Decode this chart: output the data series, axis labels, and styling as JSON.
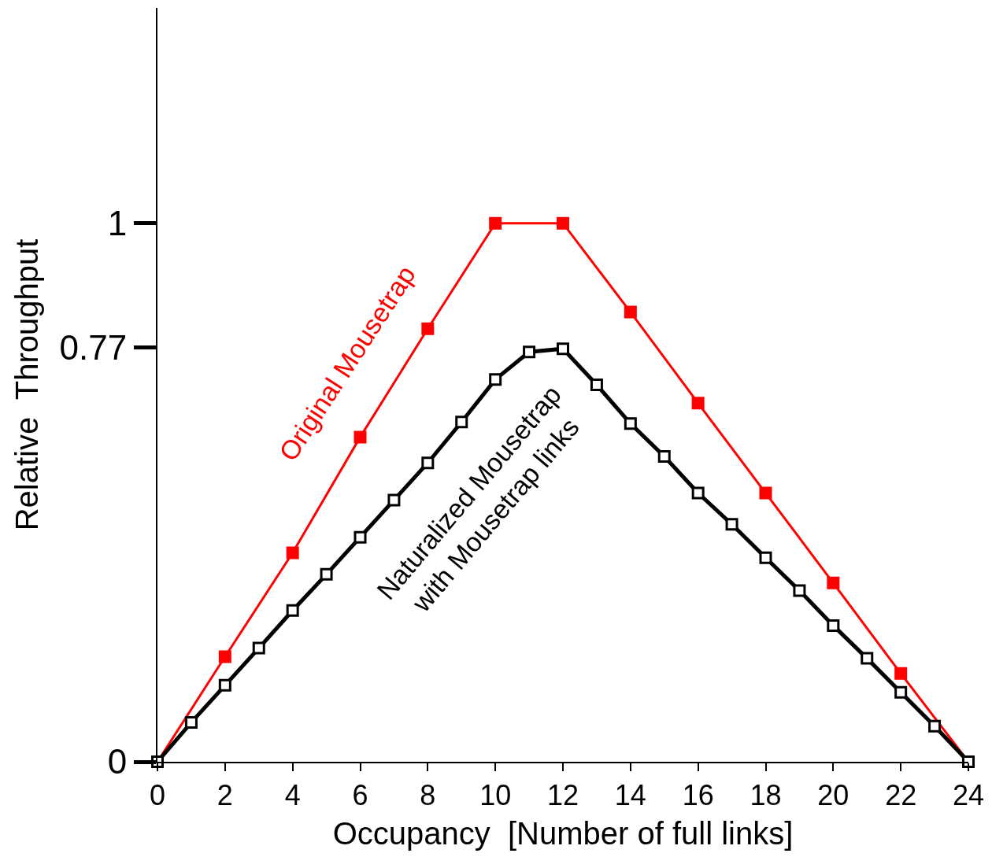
{
  "chart_data": {
    "type": "line",
    "xlabel": "Occupancy  [Number of full links]",
    "ylabel": "Relative  Throughput",
    "xlim": [
      0,
      24
    ],
    "ylim": [
      0,
      1.4
    ],
    "xticks": [
      0,
      2,
      4,
      6,
      8,
      10,
      12,
      14,
      16,
      18,
      20,
      22,
      24
    ],
    "yticks": [
      0,
      0.77,
      1
    ],
    "marker": "square",
    "legend": false,
    "series": [
      {
        "name": "Original Mousetrap",
        "color": "#ff0000",
        "x": [
          0,
          2,
          4,
          6,
          8,
          10,
          12,
          14,
          16,
          18,
          20,
          22,
          24
        ],
        "values": [
          0,
          0.195,
          0.388,
          0.603,
          0.804,
          1,
          1,
          0.835,
          0.666,
          0.499,
          0.332,
          0.164,
          0
        ]
      },
      {
        "name": "Naturalized Mousetrap\nwith Mousetrap links",
        "color": "#000000",
        "x": [
          0,
          1,
          2,
          3,
          4,
          5,
          6,
          7,
          8,
          9,
          10,
          11,
          12,
          13,
          14,
          15,
          16,
          17,
          18,
          19,
          20,
          21,
          22,
          23,
          24
        ],
        "values": [
          0,
          0.073,
          0.142,
          0.211,
          0.281,
          0.348,
          0.417,
          0.486,
          0.555,
          0.631,
          0.71,
          0.761,
          0.767,
          0.7,
          0.628,
          0.567,
          0.499,
          0.441,
          0.379,
          0.318,
          0.253,
          0.192,
          0.129,
          0.066,
          0
        ]
      }
    ]
  }
}
